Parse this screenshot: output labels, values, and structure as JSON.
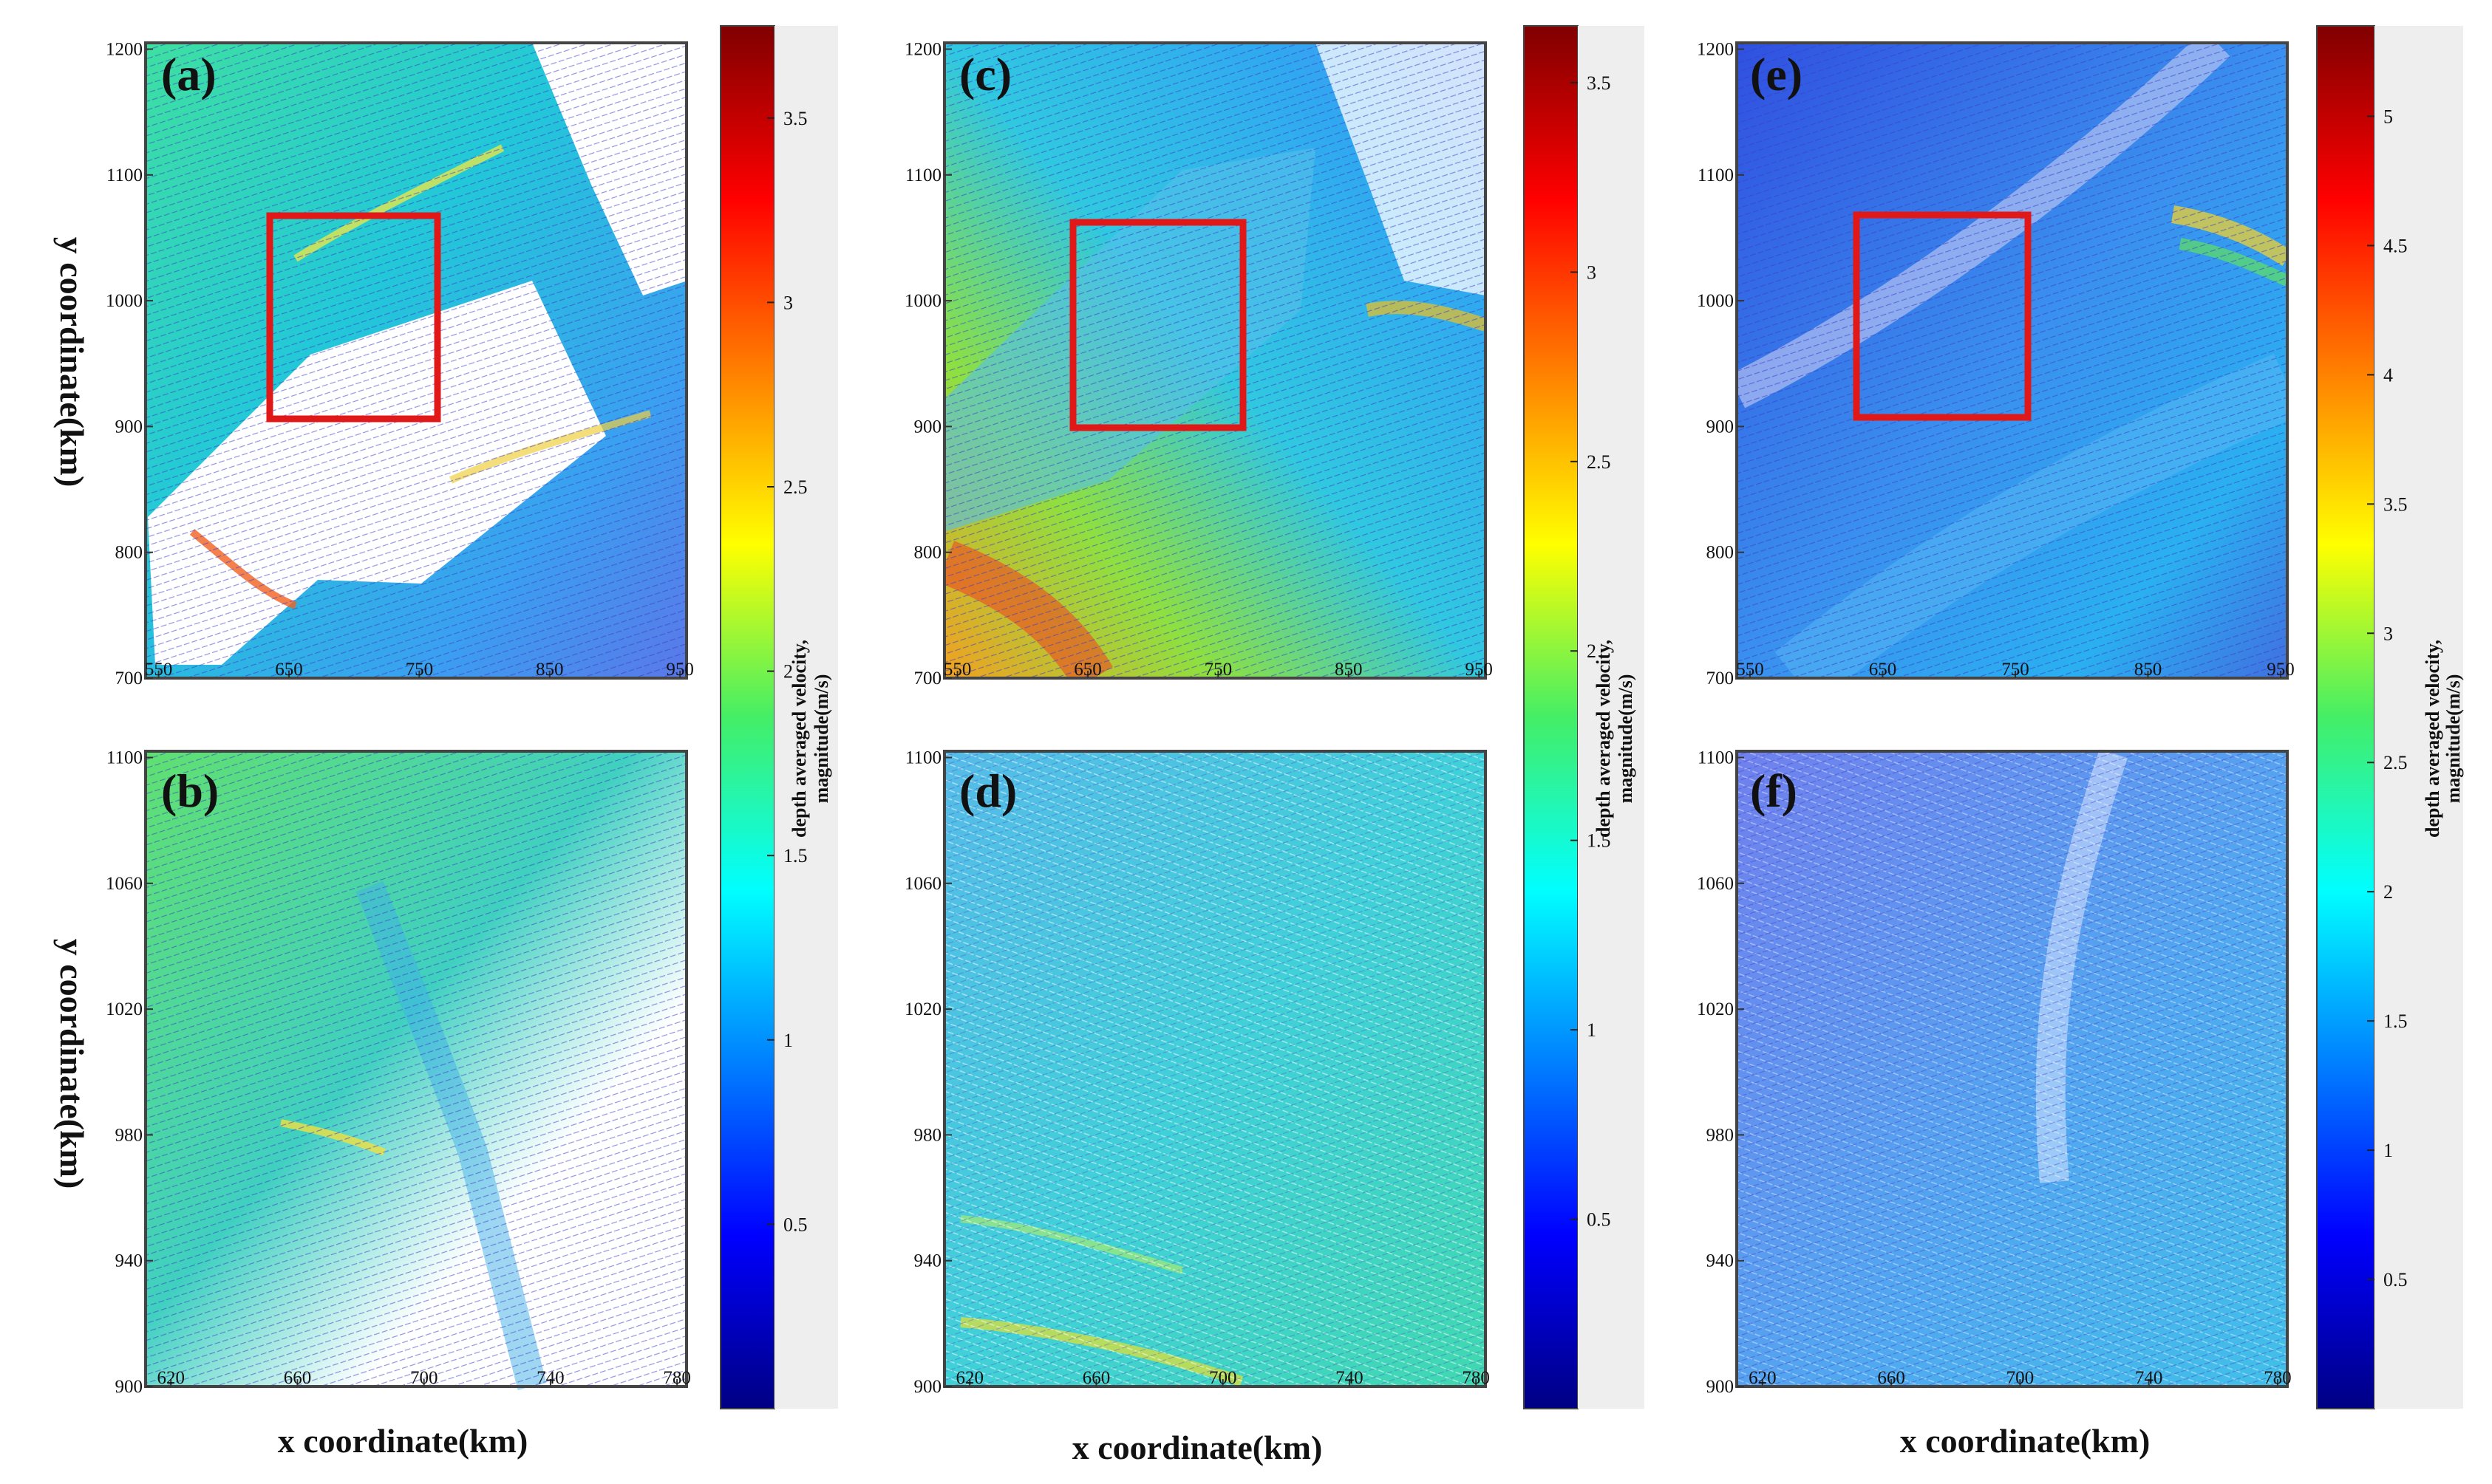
{
  "figure": {
    "xlabel": "x coordinate(km)",
    "ylabel": "y coordinate(km)",
    "colorbar_label_line1": "depth averaged velocity,",
    "colorbar_label_line2": "magnitude(m/s)"
  },
  "chart_data": [
    {
      "type": "heatmap",
      "panel": "(a)",
      "title": "(a)",
      "xticks": [
        "550",
        "650",
        "750",
        "850",
        "950"
      ],
      "yticks": [
        "1200",
        "1100",
        "1000",
        "900",
        "800",
        "700"
      ],
      "xlim": [
        540,
        955
      ],
      "ylim": [
        700,
        1205
      ],
      "highlight_box": {
        "x": [
          640,
          765
        ],
        "y": [
          908,
          1070
        ]
      },
      "colorbar_ticks": [
        "3.5",
        "3",
        "2.5",
        "2",
        "1.5",
        "1",
        "0.5"
      ],
      "colorbar_range": [
        0,
        3.75
      ]
    },
    {
      "type": "heatmap",
      "panel": "(b)",
      "title": "(b)",
      "xticks": [
        "620",
        "660",
        "700",
        "740",
        "780"
      ],
      "yticks": [
        "1100",
        "1060",
        "1020",
        "980",
        "940",
        "900"
      ],
      "xlim": [
        612,
        783
      ],
      "ylim": [
        900,
        1102
      ]
    },
    {
      "type": "heatmap",
      "panel": "(c)",
      "title": "(c)",
      "xticks": [
        "550",
        "650",
        "750",
        "850",
        "950"
      ],
      "yticks": [
        "1200",
        "1100",
        "1000",
        "900",
        "800",
        "700"
      ],
      "xlim": [
        540,
        955
      ],
      "ylim": [
        700,
        1205
      ],
      "highlight_box": {
        "x": [
          648,
          775
        ],
        "y": [
          895,
          1060
        ]
      },
      "colorbar_ticks": [
        "3.5",
        "3",
        "2.5",
        "2",
        "1.5",
        "1",
        "0.5"
      ],
      "colorbar_range": [
        0,
        3.65
      ]
    },
    {
      "type": "heatmap",
      "panel": "(d)",
      "title": "(d)",
      "xticks": [
        "620",
        "660",
        "700",
        "740",
        "780"
      ],
      "yticks": [
        "1100",
        "1060",
        "1020",
        "980",
        "940",
        "900"
      ],
      "xlim": [
        612,
        783
      ],
      "ylim": [
        900,
        1102
      ]
    },
    {
      "type": "heatmap",
      "panel": "(e)",
      "title": "(e)",
      "xticks": [
        "550",
        "650",
        "750",
        "850",
        "950"
      ],
      "yticks": [
        "1200",
        "1100",
        "1000",
        "900",
        "800",
        "700"
      ],
      "xlim": [
        540,
        955
      ],
      "ylim": [
        700,
        1205
      ],
      "highlight_box": {
        "x": [
          637,
          765
        ],
        "y": [
          908,
          1070
        ]
      },
      "colorbar_ticks": [
        "5",
        "4.5",
        "4",
        "3.5",
        "3",
        "2.5",
        "2",
        "1.5",
        "1",
        "0.5"
      ],
      "colorbar_range": [
        0,
        5.35
      ]
    },
    {
      "type": "heatmap",
      "panel": "(f)",
      "title": "(f)",
      "xticks": [
        "620",
        "660",
        "700",
        "740",
        "780"
      ],
      "yticks": [
        "1100",
        "1060",
        "1020",
        "980",
        "940",
        "900"
      ],
      "xlim": [
        612,
        783
      ],
      "ylim": [
        900,
        1102
      ]
    }
  ]
}
